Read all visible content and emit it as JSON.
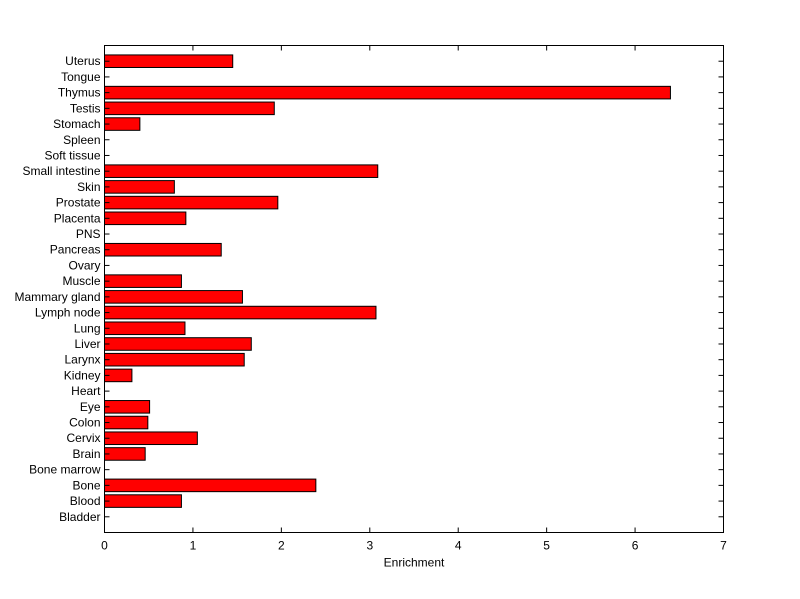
{
  "chart_data": {
    "type": "bar",
    "orientation": "horizontal",
    "categories": [
      "Bladder",
      "Blood",
      "Bone",
      "Bone marrow",
      "Brain",
      "Cervix",
      "Colon",
      "Eye",
      "Heart",
      "Kidney",
      "Larynx",
      "Liver",
      "Lung",
      "Lymph node",
      "Mammary gland",
      "Muscle",
      "Ovary",
      "Pancreas",
      "PNS",
      "Placenta",
      "Prostate",
      "Skin",
      "Small intestine",
      "Soft tissue",
      "Spleen",
      "Stomach",
      "Testis",
      "Thymus",
      "Tongue",
      "Uterus"
    ],
    "values": [
      0,
      0.87,
      2.39,
      0,
      0.46,
      1.05,
      0.49,
      0.51,
      0,
      0.31,
      1.58,
      1.66,
      0.91,
      3.07,
      1.56,
      0.87,
      0,
      1.32,
      0,
      0.92,
      1.96,
      0.79,
      3.09,
      0,
      0,
      0.4,
      1.92,
      6.4,
      0,
      1.45
    ],
    "xlabel": "Enrichment",
    "ylabel": "",
    "title": "",
    "xlim": [
      0,
      7
    ],
    "xticks": [
      "0",
      "1",
      "2",
      "3",
      "4",
      "5",
      "6",
      "7"
    ],
    "bar_color": "#ff0000",
    "grid": false
  }
}
